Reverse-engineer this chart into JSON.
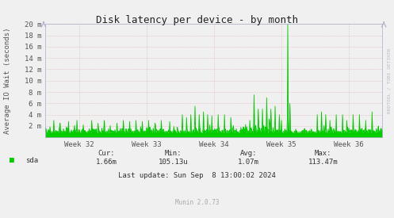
{
  "title": "Disk latency per device - by month",
  "ylabel": "Average IO Wait (seconds)",
  "ylim": [
    0,
    0.02
  ],
  "ytick_labels": [
    "",
    "2 m",
    "4 m",
    "6 m",
    "8 m",
    "10 m",
    "12 m",
    "14 m",
    "16 m",
    "18 m",
    "20 m"
  ],
  "ytick_values": [
    0,
    0.002,
    0.004,
    0.006,
    0.008,
    0.01,
    0.012,
    0.014,
    0.016,
    0.018,
    0.02
  ],
  "xtick_labels": [
    "Week 32",
    "Week 33",
    "Week 34",
    "Week 35",
    "Week 36"
  ],
  "xtick_positions": [
    0.1,
    0.3,
    0.5,
    0.7,
    0.9
  ],
  "legend_label": "sda",
  "legend_color": "#00cc00",
  "line_color": "#00cc00",
  "fill_color": "#00cc00",
  "background_color": "#f0f0f0",
  "plot_bg_color": "#f0f0f0",
  "grid_color": "#ff9999",
  "grid_alpha": 0.8,
  "stats_cur": "1.66m",
  "stats_min": "105.13u",
  "stats_avg": "1.07m",
  "stats_max": "113.47m",
  "last_update": "Last update: Sun Sep  8 13:00:02 2024",
  "munin_version": "Munin 2.0.73",
  "rrdtool_label": "RRDTOOL / TOBI OETIKER",
  "title_fontsize": 9,
  "label_fontsize": 6.5,
  "tick_fontsize": 6.5,
  "stats_fontsize": 6.5,
  "n_points": 800
}
